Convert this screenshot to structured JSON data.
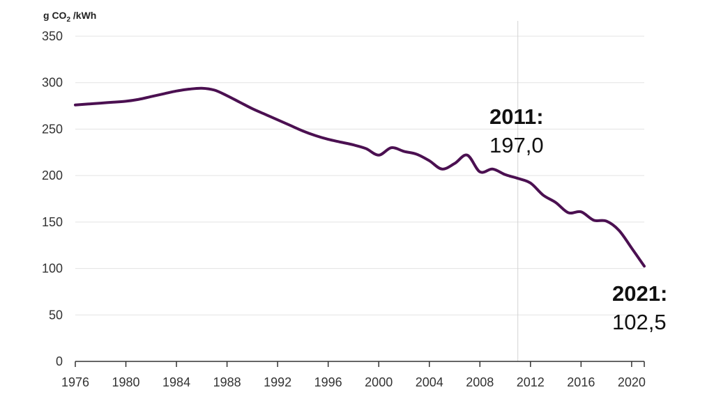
{
  "chart_data": {
    "type": "line",
    "ylabel_main": "g CO",
    "ylabel_sub": "2",
    "ylabel_unit": " /kWh",
    "ylim": [
      0,
      350
    ],
    "xlim": [
      1976,
      2021
    ],
    "y_ticks": [
      "0",
      "50",
      "100",
      "150",
      "200",
      "250",
      "300",
      "350"
    ],
    "x_ticks": [
      "1976",
      "1980",
      "1984",
      "1988",
      "1992",
      "1996",
      "2000",
      "2004",
      "2008",
      "2012",
      "2016",
      "2020"
    ],
    "grid": true,
    "line_color": "#4b1051",
    "series": [
      {
        "x": [
          1976,
          1977,
          1978,
          1979,
          1980,
          1981,
          1982,
          1983,
          1984,
          1985,
          1986,
          1987,
          1988,
          1989,
          1990,
          1991,
          1992,
          1993,
          1994,
          1995,
          1996,
          1997,
          1998,
          1999,
          2000,
          2001,
          2002,
          2003,
          2004,
          2005,
          2006,
          2007,
          2008,
          2009,
          2010,
          2011,
          2012,
          2013,
          2014,
          2015,
          2016,
          2017,
          2018,
          2019,
          2020,
          2021
        ],
        "values": [
          276,
          277,
          278,
          279,
          280,
          282,
          285,
          288,
          291,
          293,
          294,
          292,
          286,
          279,
          272,
          266,
          260,
          254,
          248,
          243,
          239,
          236,
          233,
          229,
          222,
          230,
          226,
          223,
          216,
          207,
          213,
          222,
          204,
          207,
          201,
          197,
          192,
          179,
          171,
          160,
          161,
          152,
          151,
          141,
          122,
          102.5
        ]
      }
    ],
    "annotations": [
      {
        "label": "2011:",
        "value": "197,0"
      },
      {
        "label": "2021:",
        "value": "102,5"
      }
    ],
    "reference_line_x": 2011
  }
}
